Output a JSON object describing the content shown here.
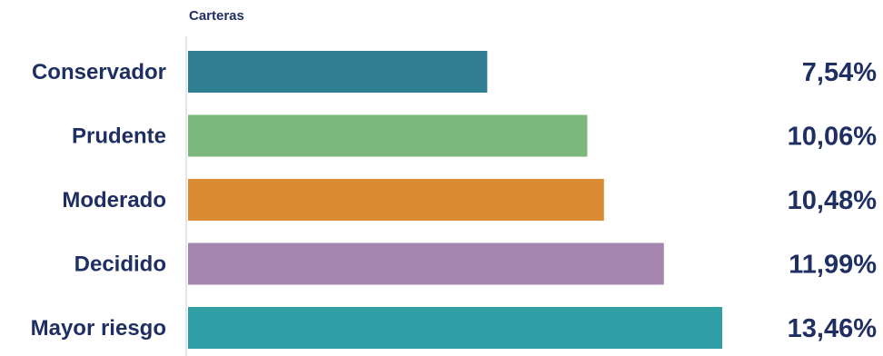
{
  "chart_data": {
    "type": "bar",
    "orientation": "horizontal",
    "legend_title": "Carteras",
    "categories": [
      "Conservador",
      "Prudente",
      "Moderado",
      "Decidido",
      "Mayor riesgo"
    ],
    "values": [
      7.54,
      10.06,
      10.48,
      11.99,
      13.46
    ],
    "value_labels": [
      "7,54%",
      "10,06%",
      "10,48%",
      "11,99%",
      "13,46%"
    ],
    "colors": [
      "#2f7e91",
      "#7bb87b",
      "#dd8a35",
      "#a586b0",
      "#2f9ea5"
    ],
    "xlim": [
      0,
      13.46
    ],
    "grid": false,
    "title": "",
    "xlabel": "",
    "ylabel": ""
  }
}
